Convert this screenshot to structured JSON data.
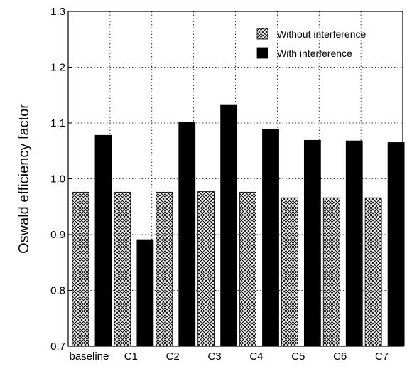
{
  "chart_data": {
    "type": "bar",
    "title": "",
    "xlabel": "",
    "ylabel": "Oswald efficiency factor",
    "categories": [
      "baseline",
      "C1",
      "C2",
      "C3",
      "C4",
      "C5",
      "C6",
      "C7"
    ],
    "series": [
      {
        "name": "Without interference",
        "pattern": "crosshatch",
        "color": "#000000",
        "values": [
          0.976,
          0.976,
          0.976,
          0.977,
          0.976,
          0.966,
          0.966,
          0.966
        ]
      },
      {
        "name": "With interference",
        "pattern": "solid",
        "color": "#000000",
        "values": [
          1.078,
          0.891,
          1.101,
          1.133,
          1.088,
          1.069,
          1.068,
          1.065
        ]
      }
    ],
    "ylim": [
      0.7,
      1.3
    ],
    "yticks": [
      "0.7",
      "0.8",
      "0.9",
      "1.0",
      "1.1",
      "1.2",
      "1.3"
    ],
    "grid": true,
    "legend_position": "top-right"
  }
}
